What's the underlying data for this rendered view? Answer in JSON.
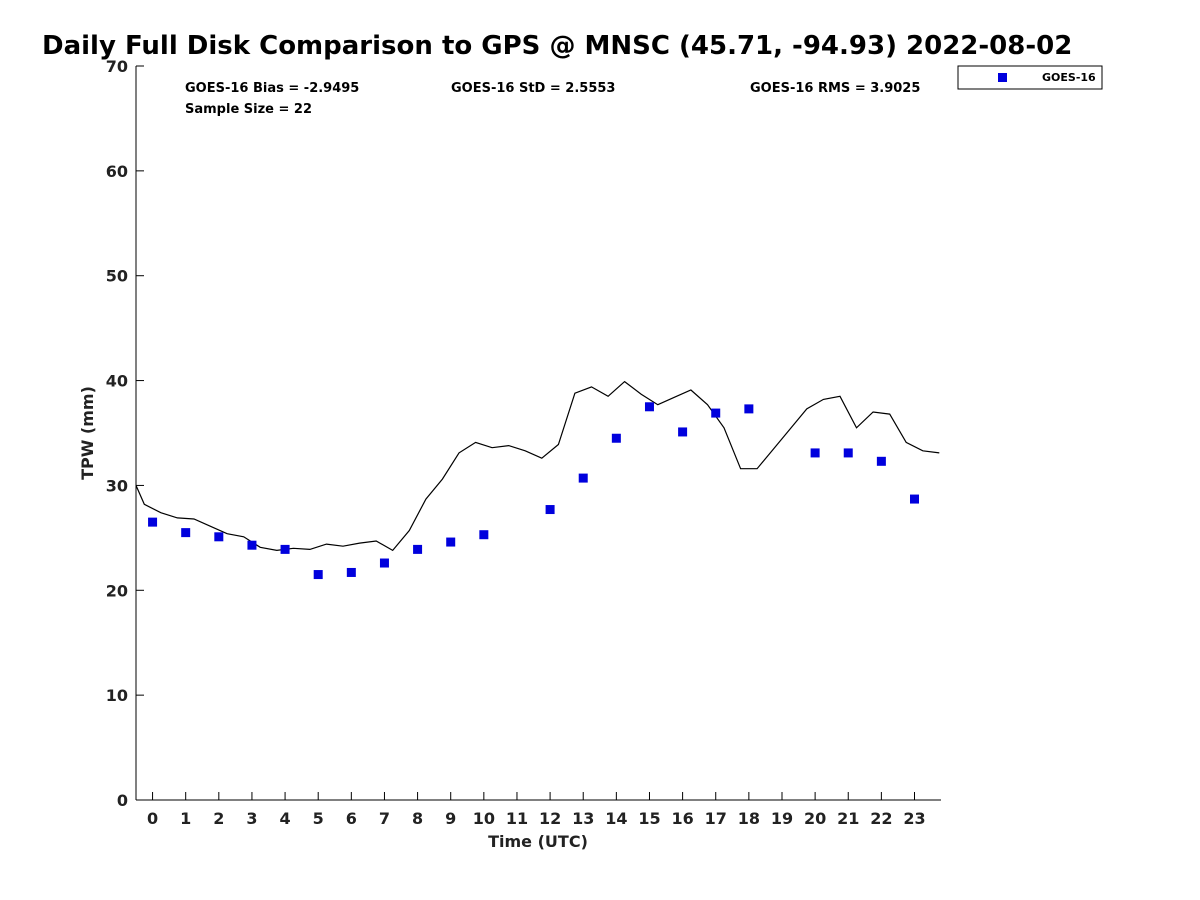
{
  "chart_data": {
    "type": "scatter",
    "title": "Daily Full Disk Comparison to GPS @ MNSC (45.71, -94.93) 2022-08-02",
    "xlabel": "Time (UTC)",
    "ylabel": "TPW (mm)",
    "xlim": [
      -0.5,
      23.8
    ],
    "ylim": [
      0,
      70
    ],
    "x_ticks": [
      0,
      1,
      2,
      3,
      4,
      5,
      6,
      7,
      8,
      9,
      10,
      11,
      12,
      13,
      14,
      15,
      16,
      17,
      18,
      19,
      20,
      21,
      22,
      23
    ],
    "y_ticks": [
      0,
      10,
      20,
      30,
      40,
      50,
      60,
      70
    ],
    "grid": false,
    "legend_position": "top-right, outside plot",
    "stats": {
      "bias": "GOES-16 Bias = -2.9495",
      "std": "GOES-16 StD = 2.5553",
      "rms": "GOES-16 RMS = 3.9025",
      "sample": "Sample Size = 22"
    },
    "series": [
      {
        "name": "GOES-16",
        "kind": "markers",
        "marker": "square",
        "color": "#0000dd",
        "x": [
          0,
          1,
          2,
          3,
          4,
          5,
          6,
          7,
          8,
          9,
          10,
          12,
          13,
          14,
          15,
          16,
          17,
          18,
          20,
          21,
          22,
          23
        ],
        "y": [
          26.5,
          25.5,
          25.1,
          24.3,
          23.9,
          21.5,
          21.7,
          22.6,
          23.9,
          24.6,
          25.3,
          27.7,
          30.7,
          34.5,
          37.5,
          35.1,
          36.9,
          37.3,
          33.1,
          33.1,
          32.3,
          28.7
        ]
      },
      {
        "kind": "line",
        "color": "#000000",
        "x": [
          -0.5,
          -0.25,
          0.25,
          0.75,
          1.25,
          1.75,
          2.25,
          2.75,
          3.25,
          3.75,
          4.25,
          4.75,
          5.25,
          5.75,
          6.25,
          6.75,
          7.25,
          7.75,
          8.25,
          8.75,
          9.25,
          9.75,
          10.25,
          10.75,
          11.25,
          11.75,
          12.25,
          12.75,
          13.25,
          13.75,
          14.25,
          14.75,
          15.25,
          15.75,
          16.25,
          16.75,
          17.25,
          17.75,
          18.25,
          18.75,
          19.25,
          19.75,
          20.25,
          20.75,
          21.25,
          21.75,
          22.25,
          22.75,
          23.25,
          23.75
        ],
        "y": [
          30.0,
          28.2,
          27.4,
          26.9,
          26.8,
          26.1,
          25.4,
          25.1,
          24.1,
          23.8,
          24.0,
          23.9,
          24.4,
          24.2,
          24.5,
          24.7,
          23.8,
          25.7,
          28.7,
          30.6,
          33.1,
          34.1,
          33.6,
          33.8,
          33.3,
          32.6,
          33.9,
          38.8,
          39.4,
          38.5,
          39.9,
          38.7,
          37.7,
          38.4,
          39.1,
          37.7,
          35.5,
          31.6,
          31.6,
          33.5,
          35.4,
          37.3,
          38.2,
          38.5,
          35.5,
          37.0,
          36.8,
          34.1,
          33.3,
          33.1
        ]
      }
    ]
  }
}
